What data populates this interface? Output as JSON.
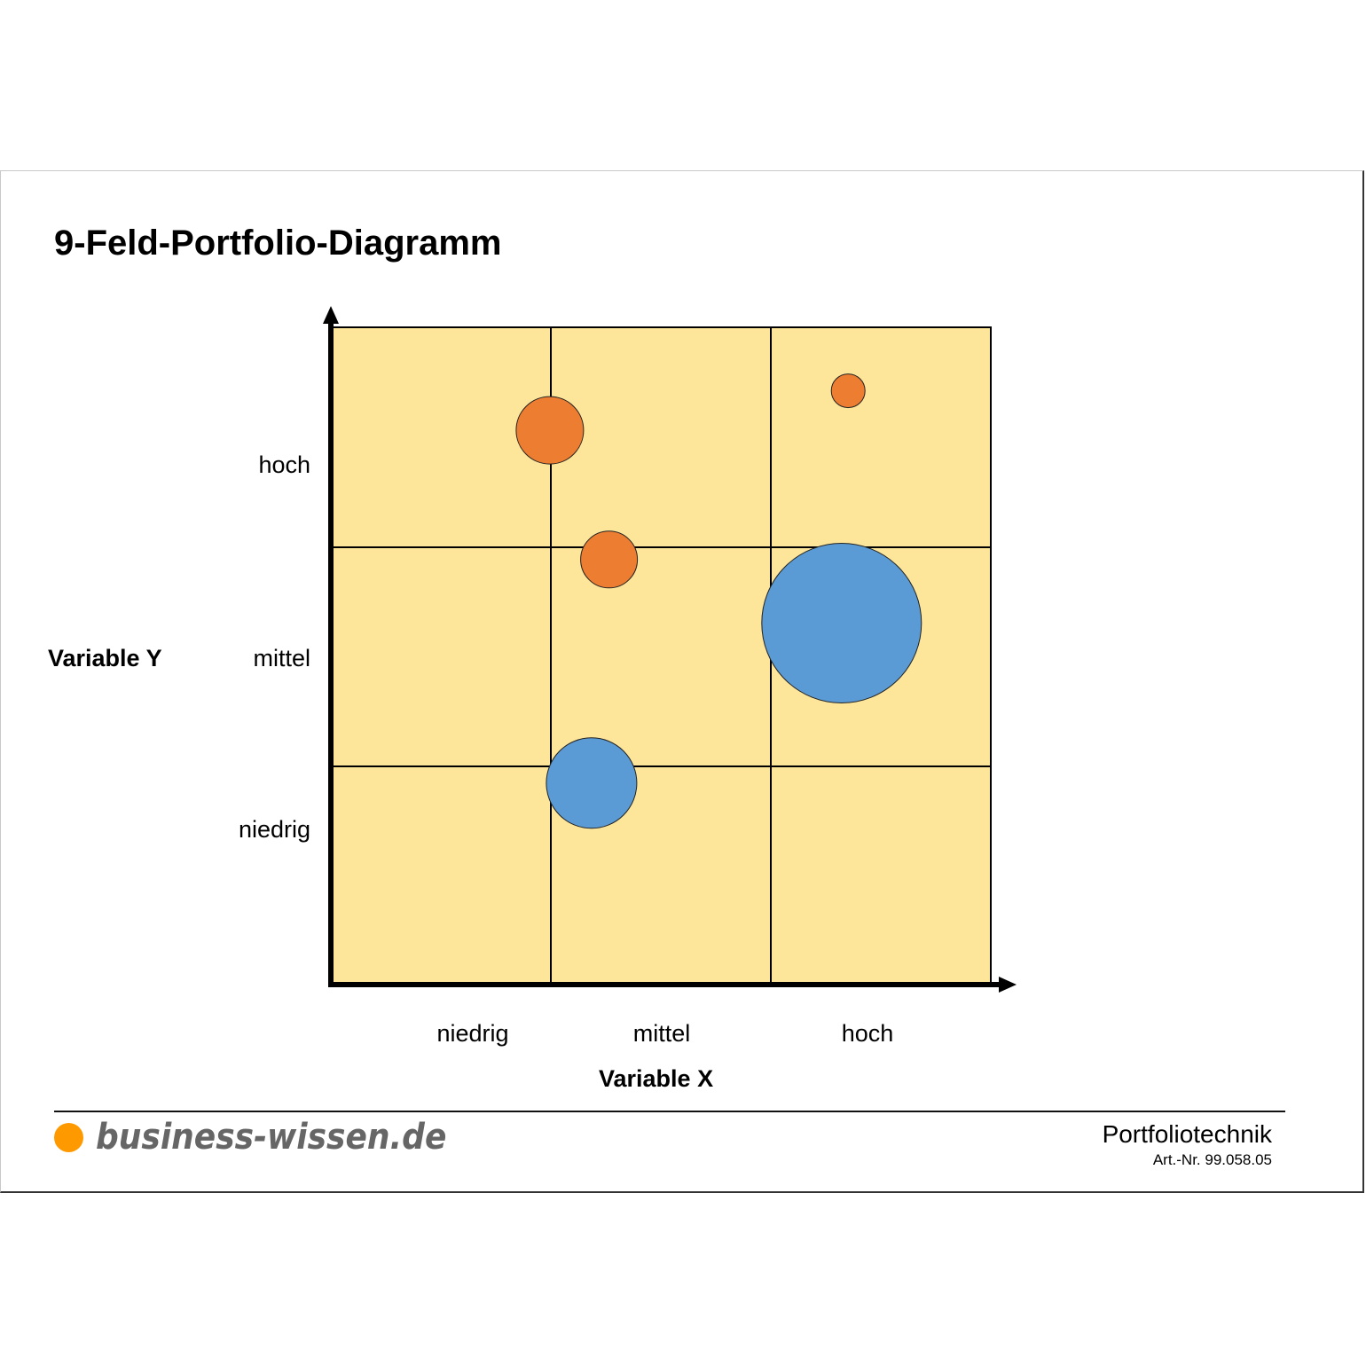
{
  "title": "9-Feld-Portfolio-Diagramm",
  "colors": {
    "field": "#fde59a",
    "orange": "#ed7d31",
    "blue": "#5b9bd5",
    "grid": "#000000",
    "logo_dot": "#ff9900",
    "logo_text": "#666666"
  },
  "axes": {
    "y_title": "Variable Y",
    "x_title": "Variable X",
    "y_labels": [
      "hoch",
      "mittel",
      "niedrig"
    ],
    "x_labels": [
      "niedrig",
      "mittel",
      "hoch"
    ]
  },
  "footer": {
    "logo": "business-wissen.de",
    "topic": "Portfoliotechnik",
    "article_number": "Art.-Nr. 99.058.05"
  },
  "chart_data": {
    "type": "scatter",
    "subtype": "bubble-portfolio-3x3",
    "title": "9-Feld-Portfolio-Diagramm",
    "xlabel": "Variable X",
    "ylabel": "Variable Y",
    "x_categories": [
      "niedrig",
      "mittel",
      "hoch"
    ],
    "y_categories": [
      "niedrig",
      "mittel",
      "hoch"
    ],
    "xlim": [
      0,
      3
    ],
    "ylim": [
      0,
      3
    ],
    "grid": true,
    "legend": "none",
    "series": [
      {
        "name": "orange",
        "color": "#ed7d31",
        "points": [
          {
            "x": 0.99,
            "y": 2.53,
            "size": 38
          },
          {
            "x": 2.35,
            "y": 2.71,
            "size": 19
          },
          {
            "x": 1.26,
            "y": 1.94,
            "size": 32
          }
        ]
      },
      {
        "name": "blue",
        "color": "#5b9bd5",
        "points": [
          {
            "x": 2.32,
            "y": 1.65,
            "size": 90
          },
          {
            "x": 1.18,
            "y": 0.92,
            "size": 51
          }
        ]
      }
    ]
  }
}
